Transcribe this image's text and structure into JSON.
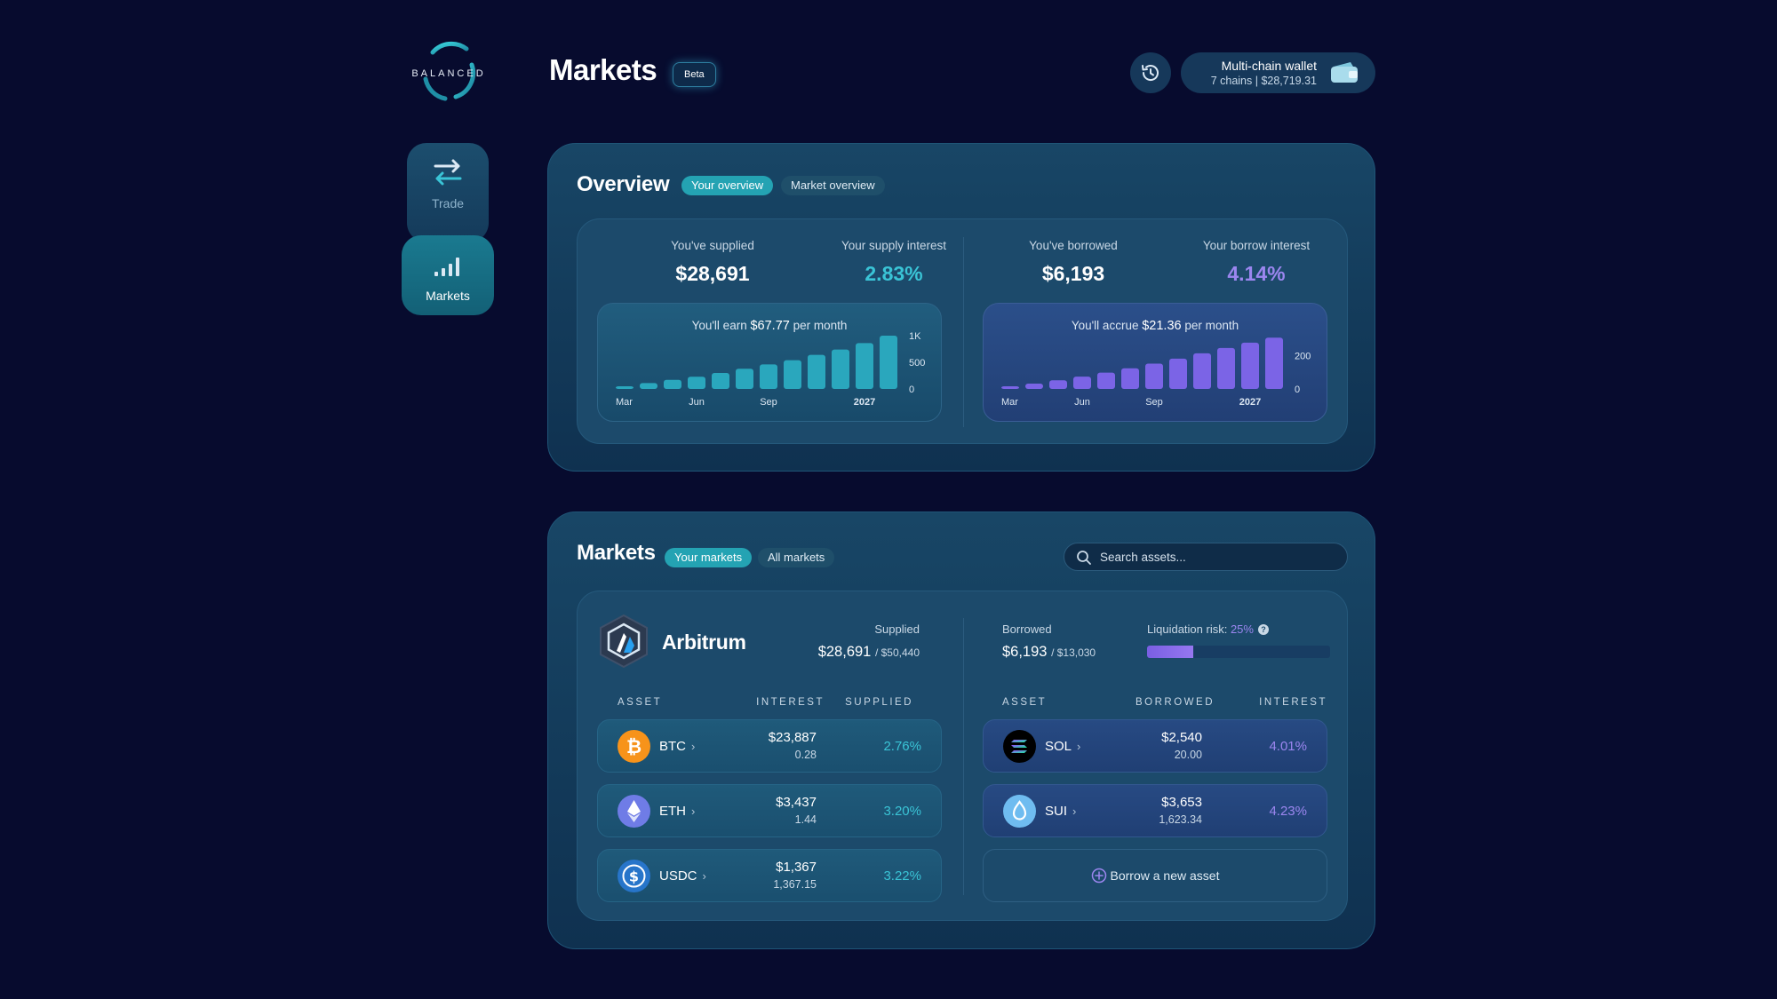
{
  "app": {
    "logo_text": "BALANCED",
    "title": "Markets",
    "beta_label": "Beta"
  },
  "header": {
    "history_icon": "history-icon",
    "wallet": {
      "title": "Multi-chain wallet",
      "subtitle": "7 chains  |  $28,719.31",
      "icon": "wallet-icon"
    }
  },
  "sidebar": {
    "items": [
      {
        "label": "Trade",
        "icon": "swap-arrows-icon",
        "active": false
      },
      {
        "label": "Markets",
        "icon": "signal-bars-icon",
        "active": true
      }
    ]
  },
  "overview": {
    "title": "Overview",
    "tabs": [
      {
        "label": "Your overview",
        "active": true
      },
      {
        "label": "Market overview",
        "active": false
      }
    ],
    "supply": {
      "supplied_label": "You've supplied",
      "supplied_value": "$28,691",
      "interest_label": "Your supply interest",
      "interest_value": "2.83%",
      "earn_prefix": "You'll earn",
      "earn_amount": "$67.77",
      "earn_suffix": "per month"
    },
    "borrow": {
      "borrowed_label": "You've borrowed",
      "borrowed_value": "$6,193",
      "interest_label": "Your borrow interest",
      "interest_value": "4.14%",
      "accrue_prefix": "You'll accrue",
      "accrue_amount": "$21.36",
      "accrue_suffix": "per month"
    }
  },
  "chart_data": [
    {
      "type": "bar",
      "title": "You'll earn $67.77 per month",
      "x_tick_labels": [
        "Mar",
        "Jun",
        "Sep",
        "2027"
      ],
      "y_tick_labels": [
        "0",
        "500",
        "1K"
      ],
      "ylim": [
        0,
        1000
      ],
      "values": [
        50,
        110,
        170,
        230,
        300,
        380,
        460,
        540,
        640,
        740,
        860,
        1000
      ],
      "color": "#2aa7bd"
    },
    {
      "type": "bar",
      "title": "You'll accrue $21.36 per month",
      "x_tick_labels": [
        "Mar",
        "Jun",
        "Sep",
        "2027"
      ],
      "y_tick_labels": [
        "0",
        "200"
      ],
      "ylim": [
        0,
        320
      ],
      "values": [
        14,
        32,
        52,
        74,
        98,
        124,
        152,
        182,
        214,
        246,
        278,
        308
      ],
      "color": "#7b64e6"
    }
  ],
  "markets": {
    "title": "Markets",
    "tabs": [
      {
        "label": "Your markets",
        "active": true
      },
      {
        "label": "All markets",
        "active": false
      }
    ],
    "search_placeholder": "Search assets...",
    "chain": {
      "name": "Arbitrum",
      "icon": "arbitrum-logo-icon",
      "supplied_label": "Supplied",
      "supplied_value": "$28,691",
      "supplied_cap": "/ $50,440",
      "borrowed_label": "Borrowed",
      "borrowed_value": "$6,193",
      "borrowed_cap": "/ $13,030",
      "risk_label": "Liquidation risk:",
      "risk_value": "25%",
      "risk_fraction": 0.25
    },
    "supply_headers": {
      "asset": "ASSET",
      "amount": "SUPPLIED",
      "interest": "INTEREST"
    },
    "borrow_headers": {
      "asset": "ASSET",
      "amount": "BORROWED",
      "interest": "INTEREST"
    },
    "supplied_assets": [
      {
        "symbol": "BTC",
        "usd": "$23,887",
        "qty": "0.28",
        "rate": "2.76%",
        "icon": "bitcoin-icon",
        "color": "#f7931a"
      },
      {
        "symbol": "ETH",
        "usd": "$3,437",
        "qty": "1.44",
        "rate": "3.20%",
        "icon": "ethereum-icon",
        "color": "#6f7ce6"
      },
      {
        "symbol": "USDC",
        "usd": "$1,367",
        "qty": "1,367.15",
        "rate": "3.22%",
        "icon": "usdc-icon",
        "color": "#2775ca"
      }
    ],
    "borrowed_assets": [
      {
        "symbol": "SOL",
        "usd": "$2,540",
        "qty": "20.00",
        "rate": "4.01%",
        "icon": "solana-icon",
        "color": "#000000"
      },
      {
        "symbol": "SUI",
        "usd": "$3,653",
        "qty": "1,623.34",
        "rate": "4.23%",
        "icon": "sui-icon",
        "color": "#6fbcf0"
      }
    ],
    "borrow_new_label": "Borrow a new asset"
  }
}
